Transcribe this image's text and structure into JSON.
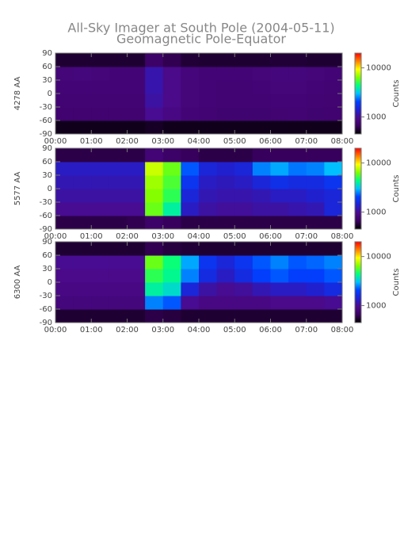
{
  "title": "All-Sky Imager at South Pole (2004-05-11)",
  "subtitle": "Geomagnetic Pole-Equator",
  "chart_data": [
    {
      "type": "heatmap",
      "y_label": "4278 AA",
      "colorbar_label": "Counts",
      "x": [
        0.25,
        0.75,
        1.25,
        1.75,
        2.25,
        2.75,
        3.25,
        3.75,
        4.25,
        4.75,
        5.25,
        5.75,
        6.25,
        6.75,
        7.25,
        7.75
      ],
      "y": [
        -75,
        -45,
        -15,
        15,
        45,
        75
      ],
      "values": [
        [
          500,
          500,
          500,
          500,
          500,
          520,
          500,
          500,
          500,
          500,
          500,
          500,
          500,
          500,
          500,
          500
        ],
        [
          750,
          750,
          750,
          750,
          750,
          1000,
          900,
          800,
          780,
          760,
          760,
          760,
          770,
          780,
          760,
          750
        ],
        [
          780,
          780,
          780,
          780,
          780,
          1100,
          950,
          820,
          800,
          780,
          780,
          780,
          800,
          800,
          780,
          770
        ],
        [
          800,
          800,
          800,
          800,
          800,
          1150,
          950,
          820,
          800,
          780,
          780,
          800,
          820,
          820,
          800,
          780
        ],
        [
          820,
          850,
          820,
          800,
          800,
          1150,
          950,
          830,
          800,
          800,
          800,
          820,
          850,
          850,
          820,
          800
        ],
        [
          550,
          550,
          550,
          550,
          550,
          700,
          620,
          560,
          550,
          550,
          550,
          550,
          560,
          560,
          550,
          550
        ]
      ],
      "xlim": [
        0,
        8
      ],
      "ylim": [
        -90,
        90
      ],
      "xticks": [
        {
          "value": 0,
          "label": "00:00"
        },
        {
          "value": 1,
          "label": "01:00"
        },
        {
          "value": 2,
          "label": "02:00"
        },
        {
          "value": 3,
          "label": "03:00"
        },
        {
          "value": 4,
          "label": "04:00"
        },
        {
          "value": 5,
          "label": "05:00"
        },
        {
          "value": 6,
          "label": "06:00"
        },
        {
          "value": 7,
          "label": "07:00"
        },
        {
          "value": 8,
          "label": "08:00"
        }
      ],
      "yticks": [
        -90,
        -60,
        -30,
        0,
        30,
        60,
        90
      ],
      "clim": [
        450,
        20000
      ],
      "cticks": [
        1000,
        10000
      ],
      "color_log": true,
      "colormap": [
        "#000000",
        "#3a0060",
        "#4b0a8a",
        "#2020d0",
        "#0040ff",
        "#00c0ff",
        "#00ff80",
        "#80ff00",
        "#ffff00",
        "#ff8000",
        "#ff0000"
      ]
    },
    {
      "type": "heatmap",
      "y_label": "5577 AA",
      "colorbar_label": "Counts",
      "x": [
        0.25,
        0.75,
        1.25,
        1.75,
        2.25,
        2.75,
        3.25,
        3.75,
        4.25,
        4.75,
        5.25,
        5.75,
        6.25,
        6.75,
        7.25,
        7.75
      ],
      "y": [
        -75,
        -45,
        -15,
        15,
        45,
        75
      ],
      "values": [
        [
          600,
          600,
          600,
          600,
          620,
          700,
          650,
          600,
          600,
          600,
          600,
          600,
          600,
          600,
          600,
          600
        ],
        [
          1000,
          1000,
          1000,
          1000,
          1000,
          6000,
          4000,
          1300,
          1100,
          1050,
          1050,
          1100,
          1100,
          1150,
          1200,
          1500
        ],
        [
          1100,
          1100,
          1100,
          1100,
          1100,
          6500,
          5000,
          1500,
          1200,
          1150,
          1150,
          1200,
          1300,
          1300,
          1400,
          1500
        ],
        [
          1200,
          1200,
          1200,
          1200,
          1200,
          7000,
          5500,
          1800,
          1300,
          1250,
          1300,
          1500,
          1700,
          1600,
          1600,
          1800
        ],
        [
          1300,
          1300,
          1300,
          1300,
          1300,
          8000,
          6000,
          2200,
          1500,
          1400,
          1500,
          2500,
          2800,
          2400,
          2500,
          3000
        ],
        [
          600,
          600,
          600,
          600,
          600,
          800,
          700,
          650,
          600,
          600,
          600,
          650,
          650,
          650,
          650,
          650
        ]
      ],
      "xlim": [
        0,
        8
      ],
      "ylim": [
        -90,
        90
      ],
      "xticks": [
        {
          "value": 0,
          "label": "00:00"
        },
        {
          "value": 1,
          "label": "01:00"
        },
        {
          "value": 2,
          "label": "02:00"
        },
        {
          "value": 3,
          "label": "03:00"
        },
        {
          "value": 4,
          "label": "04:00"
        },
        {
          "value": 5,
          "label": "05:00"
        },
        {
          "value": 6,
          "label": "06:00"
        },
        {
          "value": 7,
          "label": "07:00"
        },
        {
          "value": 8,
          "label": "08:00"
        }
      ],
      "yticks": [
        -90,
        -60,
        -30,
        0,
        30,
        60,
        90
      ],
      "clim": [
        450,
        20000
      ],
      "cticks": [
        1000,
        10000
      ],
      "color_log": true,
      "colormap": [
        "#000000",
        "#3a0060",
        "#4b0a8a",
        "#2020d0",
        "#0040ff",
        "#00c0ff",
        "#00ff80",
        "#80ff00",
        "#ffff00",
        "#ff8000",
        "#ff0000"
      ]
    },
    {
      "type": "heatmap",
      "y_label": "6300 AA",
      "colorbar_label": "Counts",
      "x": [
        0.25,
        0.75,
        1.25,
        1.75,
        2.25,
        2.75,
        3.25,
        3.75,
        4.25,
        4.75,
        5.25,
        5.75,
        6.25,
        6.75,
        7.25,
        7.75
      ],
      "y": [
        -75,
        -45,
        -15,
        15,
        45,
        75
      ],
      "values": [
        [
          550,
          550,
          550,
          550,
          550,
          600,
          580,
          550,
          550,
          550,
          550,
          550,
          550,
          550,
          550,
          550
        ],
        [
          850,
          850,
          850,
          850,
          850,
          2500,
          2200,
          1000,
          900,
          900,
          900,
          900,
          950,
          950,
          950,
          1000
        ],
        [
          900,
          900,
          900,
          900,
          900,
          4000,
          3500,
          1500,
          1100,
          1000,
          1050,
          1200,
          1300,
          1300,
          1400,
          1600
        ],
        [
          950,
          950,
          950,
          950,
          950,
          5000,
          4200,
          2500,
          1600,
          1300,
          1600,
          2000,
          2200,
          2000,
          2000,
          2200
        ],
        [
          1000,
          1000,
          1000,
          1000,
          1000,
          6000,
          4500,
          2800,
          1800,
          1500,
          1800,
          2200,
          2500,
          2200,
          2300,
          2500
        ],
        [
          550,
          550,
          550,
          550,
          550,
          620,
          580,
          560,
          550,
          550,
          550,
          550,
          550,
          550,
          550,
          550
        ]
      ],
      "xlim": [
        0,
        8
      ],
      "ylim": [
        -90,
        90
      ],
      "xticks": [
        {
          "value": 0,
          "label": "00:00"
        },
        {
          "value": 1,
          "label": "01:00"
        },
        {
          "value": 2,
          "label": "02:00"
        },
        {
          "value": 3,
          "label": "03:00"
        },
        {
          "value": 4,
          "label": "04:00"
        },
        {
          "value": 5,
          "label": "05:00"
        },
        {
          "value": 6,
          "label": "06:00"
        },
        {
          "value": 7,
          "label": "07:00"
        },
        {
          "value": 8,
          "label": "08:00"
        }
      ],
      "yticks": [
        -90,
        -60,
        -30,
        0,
        30,
        60,
        90
      ],
      "clim": [
        450,
        20000
      ],
      "cticks": [
        1000,
        10000
      ],
      "color_log": true,
      "colormap": [
        "#000000",
        "#3a0060",
        "#4b0a8a",
        "#2020d0",
        "#0040ff",
        "#00c0ff",
        "#00ff80",
        "#80ff00",
        "#ffff00",
        "#ff8000",
        "#ff0000"
      ]
    }
  ]
}
